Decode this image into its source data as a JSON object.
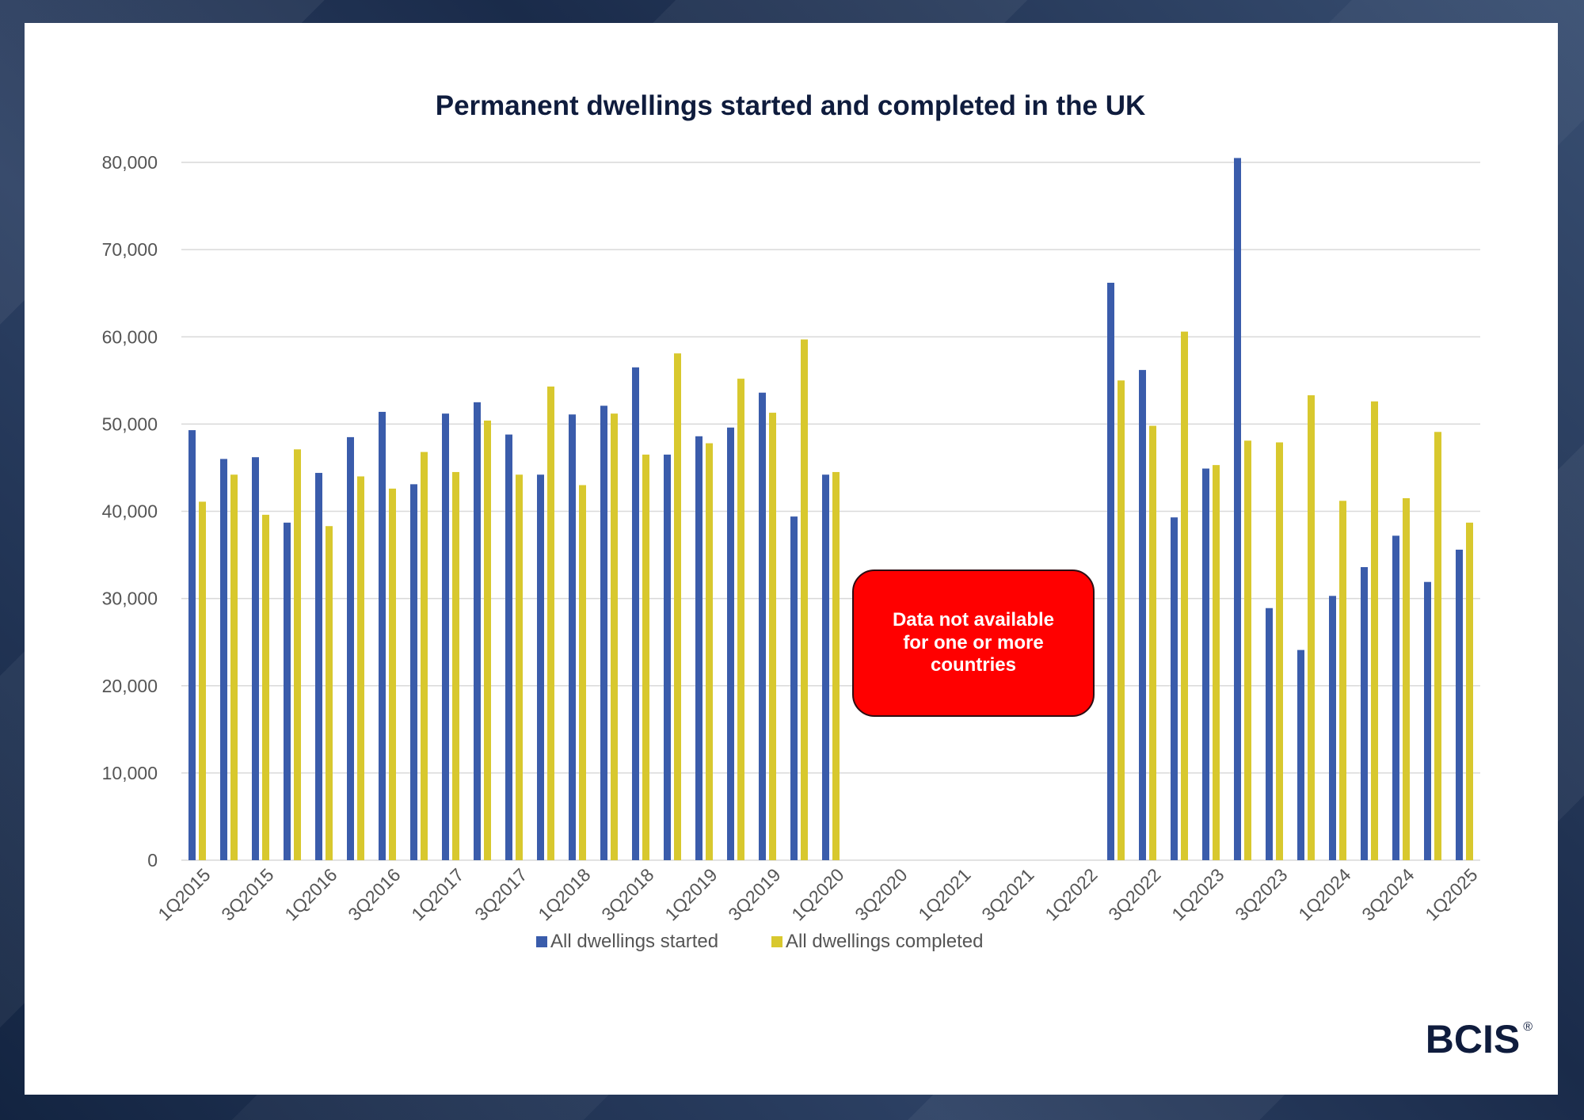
{
  "colors": {
    "started": "#3a5cab",
    "completed": "#d8c82e",
    "grid": "#d9d9d9",
    "callout_bg": "#ff0000",
    "callout_border": "#2d0d12",
    "brand": "#0f1c3d"
  },
  "logo": {
    "text": "BCIS",
    "reg": "®"
  },
  "callout": {
    "text": "Data not available\nfor one or more\ncountries"
  },
  "chart_data": {
    "type": "bar",
    "title": "Permanent dwellings started and completed in the UK",
    "xlabel": "",
    "ylabel": "",
    "ylim": [
      0,
      80000
    ],
    "yticks": [
      "0",
      "10,000",
      "20,000",
      "30,000",
      "40,000",
      "50,000",
      "60,000",
      "70,000",
      "80,000"
    ],
    "grid": true,
    "legend_position": "bottom",
    "categories": [
      "1Q2015",
      "2Q2015",
      "3Q2015",
      "4Q2015",
      "1Q2016",
      "2Q2016",
      "3Q2016",
      "4Q2016",
      "1Q2017",
      "2Q2017",
      "3Q2017",
      "4Q2017",
      "1Q2018",
      "2Q2018",
      "3Q2018",
      "4Q2018",
      "1Q2019",
      "2Q2019",
      "3Q2019",
      "4Q2019",
      "1Q2020",
      "2Q2020",
      "3Q2020",
      "4Q2020",
      "1Q2021",
      "2Q2021",
      "3Q2021",
      "4Q2021",
      "1Q2022",
      "2Q2022",
      "3Q2022",
      "4Q2022",
      "1Q2023",
      "2Q2023",
      "3Q2023",
      "4Q2023",
      "1Q2024",
      "2Q2024",
      "3Q2024",
      "4Q2024",
      "1Q2025"
    ],
    "visible_tick_labels": [
      "1Q2015",
      "3Q2015",
      "1Q2016",
      "3Q2016",
      "1Q2017",
      "3Q2017",
      "1Q2018",
      "3Q2018",
      "1Q2019",
      "3Q2019",
      "1Q2020",
      "3Q2020",
      "1Q2021",
      "3Q2021",
      "1Q2022",
      "3Q2022",
      "1Q2023",
      "3Q2023",
      "1Q2024",
      "3Q2024",
      "1Q2025"
    ],
    "series": [
      {
        "name": "All dwellings started",
        "color_key": "started",
        "values": [
          49300,
          46000,
          46200,
          38700,
          44400,
          48500,
          51400,
          43100,
          51200,
          52500,
          48800,
          44200,
          51100,
          52100,
          56500,
          46500,
          48600,
          49600,
          53600,
          39400,
          44200,
          null,
          null,
          null,
          null,
          null,
          null,
          null,
          null,
          66200,
          56200,
          39300,
          44900,
          80500,
          28900,
          24100,
          30300,
          33600,
          37200,
          31900,
          35600
        ]
      },
      {
        "name": "All dwellings completed",
        "color_key": "completed",
        "values": [
          41100,
          44200,
          39600,
          47100,
          38300,
          44000,
          42600,
          46800,
          44500,
          50400,
          44200,
          54300,
          43000,
          51200,
          46500,
          58100,
          47800,
          55200,
          51300,
          59700,
          44500,
          null,
          null,
          null,
          null,
          null,
          null,
          null,
          null,
          55000,
          49800,
          60600,
          45300,
          48100,
          47900,
          53300,
          41200,
          52600,
          41500,
          49100,
          38700
        ]
      }
    ],
    "annotations": [
      "Data not available for one or more countries"
    ]
  }
}
